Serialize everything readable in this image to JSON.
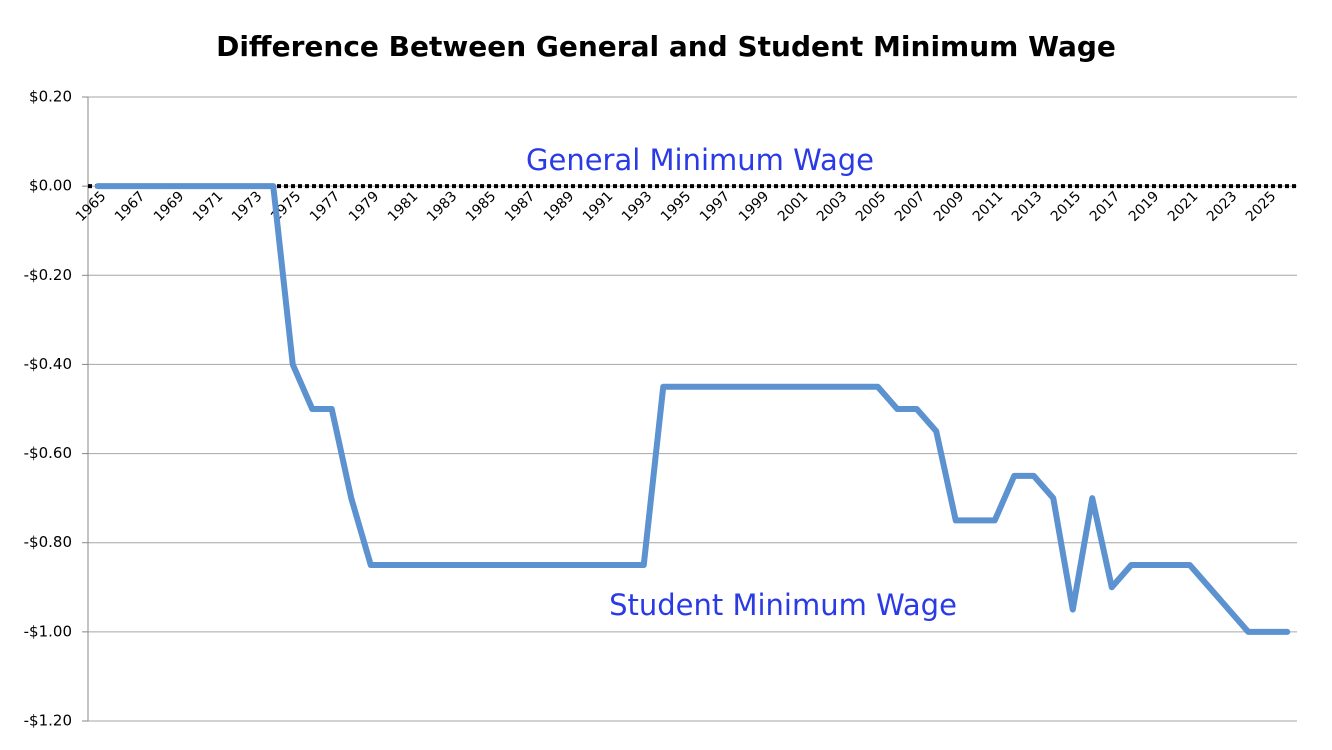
{
  "chart_data": {
    "type": "line",
    "title": "Difference Between General and Student Minimum Wage",
    "categories": [
      "1965",
      null,
      "1967",
      null,
      "1969",
      null,
      "1971",
      null,
      "1973",
      null,
      "1975",
      null,
      "1977",
      null,
      "1979",
      null,
      "1981",
      null,
      "1983",
      null,
      "1985",
      null,
      "1987",
      null,
      "1989",
      null,
      "1991",
      null,
      "1993",
      null,
      "1995",
      null,
      "1997",
      null,
      "1999",
      null,
      "2001",
      null,
      "2003",
      null,
      "2005",
      null,
      "2007",
      null,
      "2009",
      null,
      "2011",
      null,
      "2013",
      null,
      "2015",
      null,
      "2017",
      null,
      "2019",
      null,
      "2021",
      null,
      "2023",
      null,
      "2025",
      null
    ],
    "series": [
      {
        "name": "Student Minimum Wage",
        "color": "#5b92cf",
        "values": [
          0,
          0,
          0,
          0,
          0,
          0,
          0,
          0,
          0,
          0,
          -0.4,
          -0.5,
          -0.5,
          -0.7,
          -0.85,
          -0.85,
          -0.85,
          -0.85,
          -0.85,
          -0.85,
          -0.85,
          -0.85,
          -0.85,
          -0.85,
          -0.85,
          -0.85,
          -0.85,
          -0.85,
          -0.85,
          -0.45,
          -0.45,
          -0.45,
          -0.45,
          -0.45,
          -0.45,
          -0.45,
          -0.45,
          -0.45,
          -0.45,
          -0.45,
          -0.45,
          -0.5,
          -0.5,
          -0.55,
          -0.75,
          -0.75,
          -0.75,
          -0.65,
          -0.65,
          -0.7,
          -0.95,
          -0.7,
          -0.9,
          -0.85,
          -0.85,
          -0.85,
          -0.85,
          -0.9,
          -0.95,
          -1.0,
          -1.0,
          -1.0
        ]
      }
    ],
    "annotations": [
      "General Minimum Wage",
      "Student Minimum Wage"
    ],
    "ylim": [
      -1.2,
      0.2
    ],
    "yticks": [
      {
        "value": 0.2,
        "label": "$0.20"
      },
      {
        "value": 0,
        "label": "$0.00"
      },
      {
        "value": -0.2,
        "label": "-$0.20"
      },
      {
        "value": -0.4,
        "label": "-$0.40"
      },
      {
        "value": -0.6,
        "label": "-$0.60"
      },
      {
        "value": -0.8,
        "label": "-$0.80"
      },
      {
        "value": -1.0,
        "label": "-$1.00"
      },
      {
        "value": -1.2,
        "label": "-$1.20"
      }
    ],
    "grid": true
  }
}
